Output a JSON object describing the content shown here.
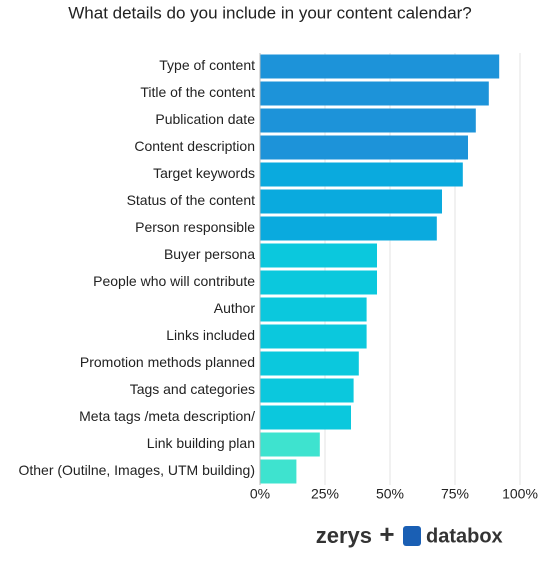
{
  "chart_data": {
    "type": "bar",
    "orientation": "horizontal",
    "title": "What details do you include in your content calendar?",
    "categories": [
      "Type of content",
      "Title of the content",
      "Publication date",
      "Content description",
      "Target keywords",
      "Status of the content",
      "Person responsible",
      "Buyer persona",
      "People who will contribute",
      "Author",
      "Links included",
      "Promotion methods planned",
      "Tags and categories",
      "Meta tags /meta description/",
      "Link building plan",
      "Other (Outilne, Images, UTM building)"
    ],
    "values": [
      92,
      88,
      83,
      80,
      78,
      70,
      68,
      45,
      45,
      41,
      41,
      38,
      36,
      35,
      23,
      14
    ],
    "colors": [
      "#1d93d9",
      "#1d93d9",
      "#1d93d9",
      "#1d93d9",
      "#0aaade",
      "#0aaade",
      "#0aaade",
      "#0bc8dd",
      "#0bc8dd",
      "#0bc8dd",
      "#0bc8dd",
      "#0bc8dd",
      "#0bc8dd",
      "#0bc8dd",
      "#3ee3cf",
      "#3ee3cf"
    ],
    "xlim": [
      0,
      100
    ],
    "xticks": [
      {
        "value": 0,
        "label": "0%"
      },
      {
        "value": 25,
        "label": "25%"
      },
      {
        "value": 50,
        "label": "50%"
      },
      {
        "value": 75,
        "label": "75%"
      },
      {
        "value": 100,
        "label": "100%"
      }
    ],
    "grid": true
  },
  "footer": {
    "left": "zerys",
    "joiner": "+",
    "right": "databox"
  }
}
